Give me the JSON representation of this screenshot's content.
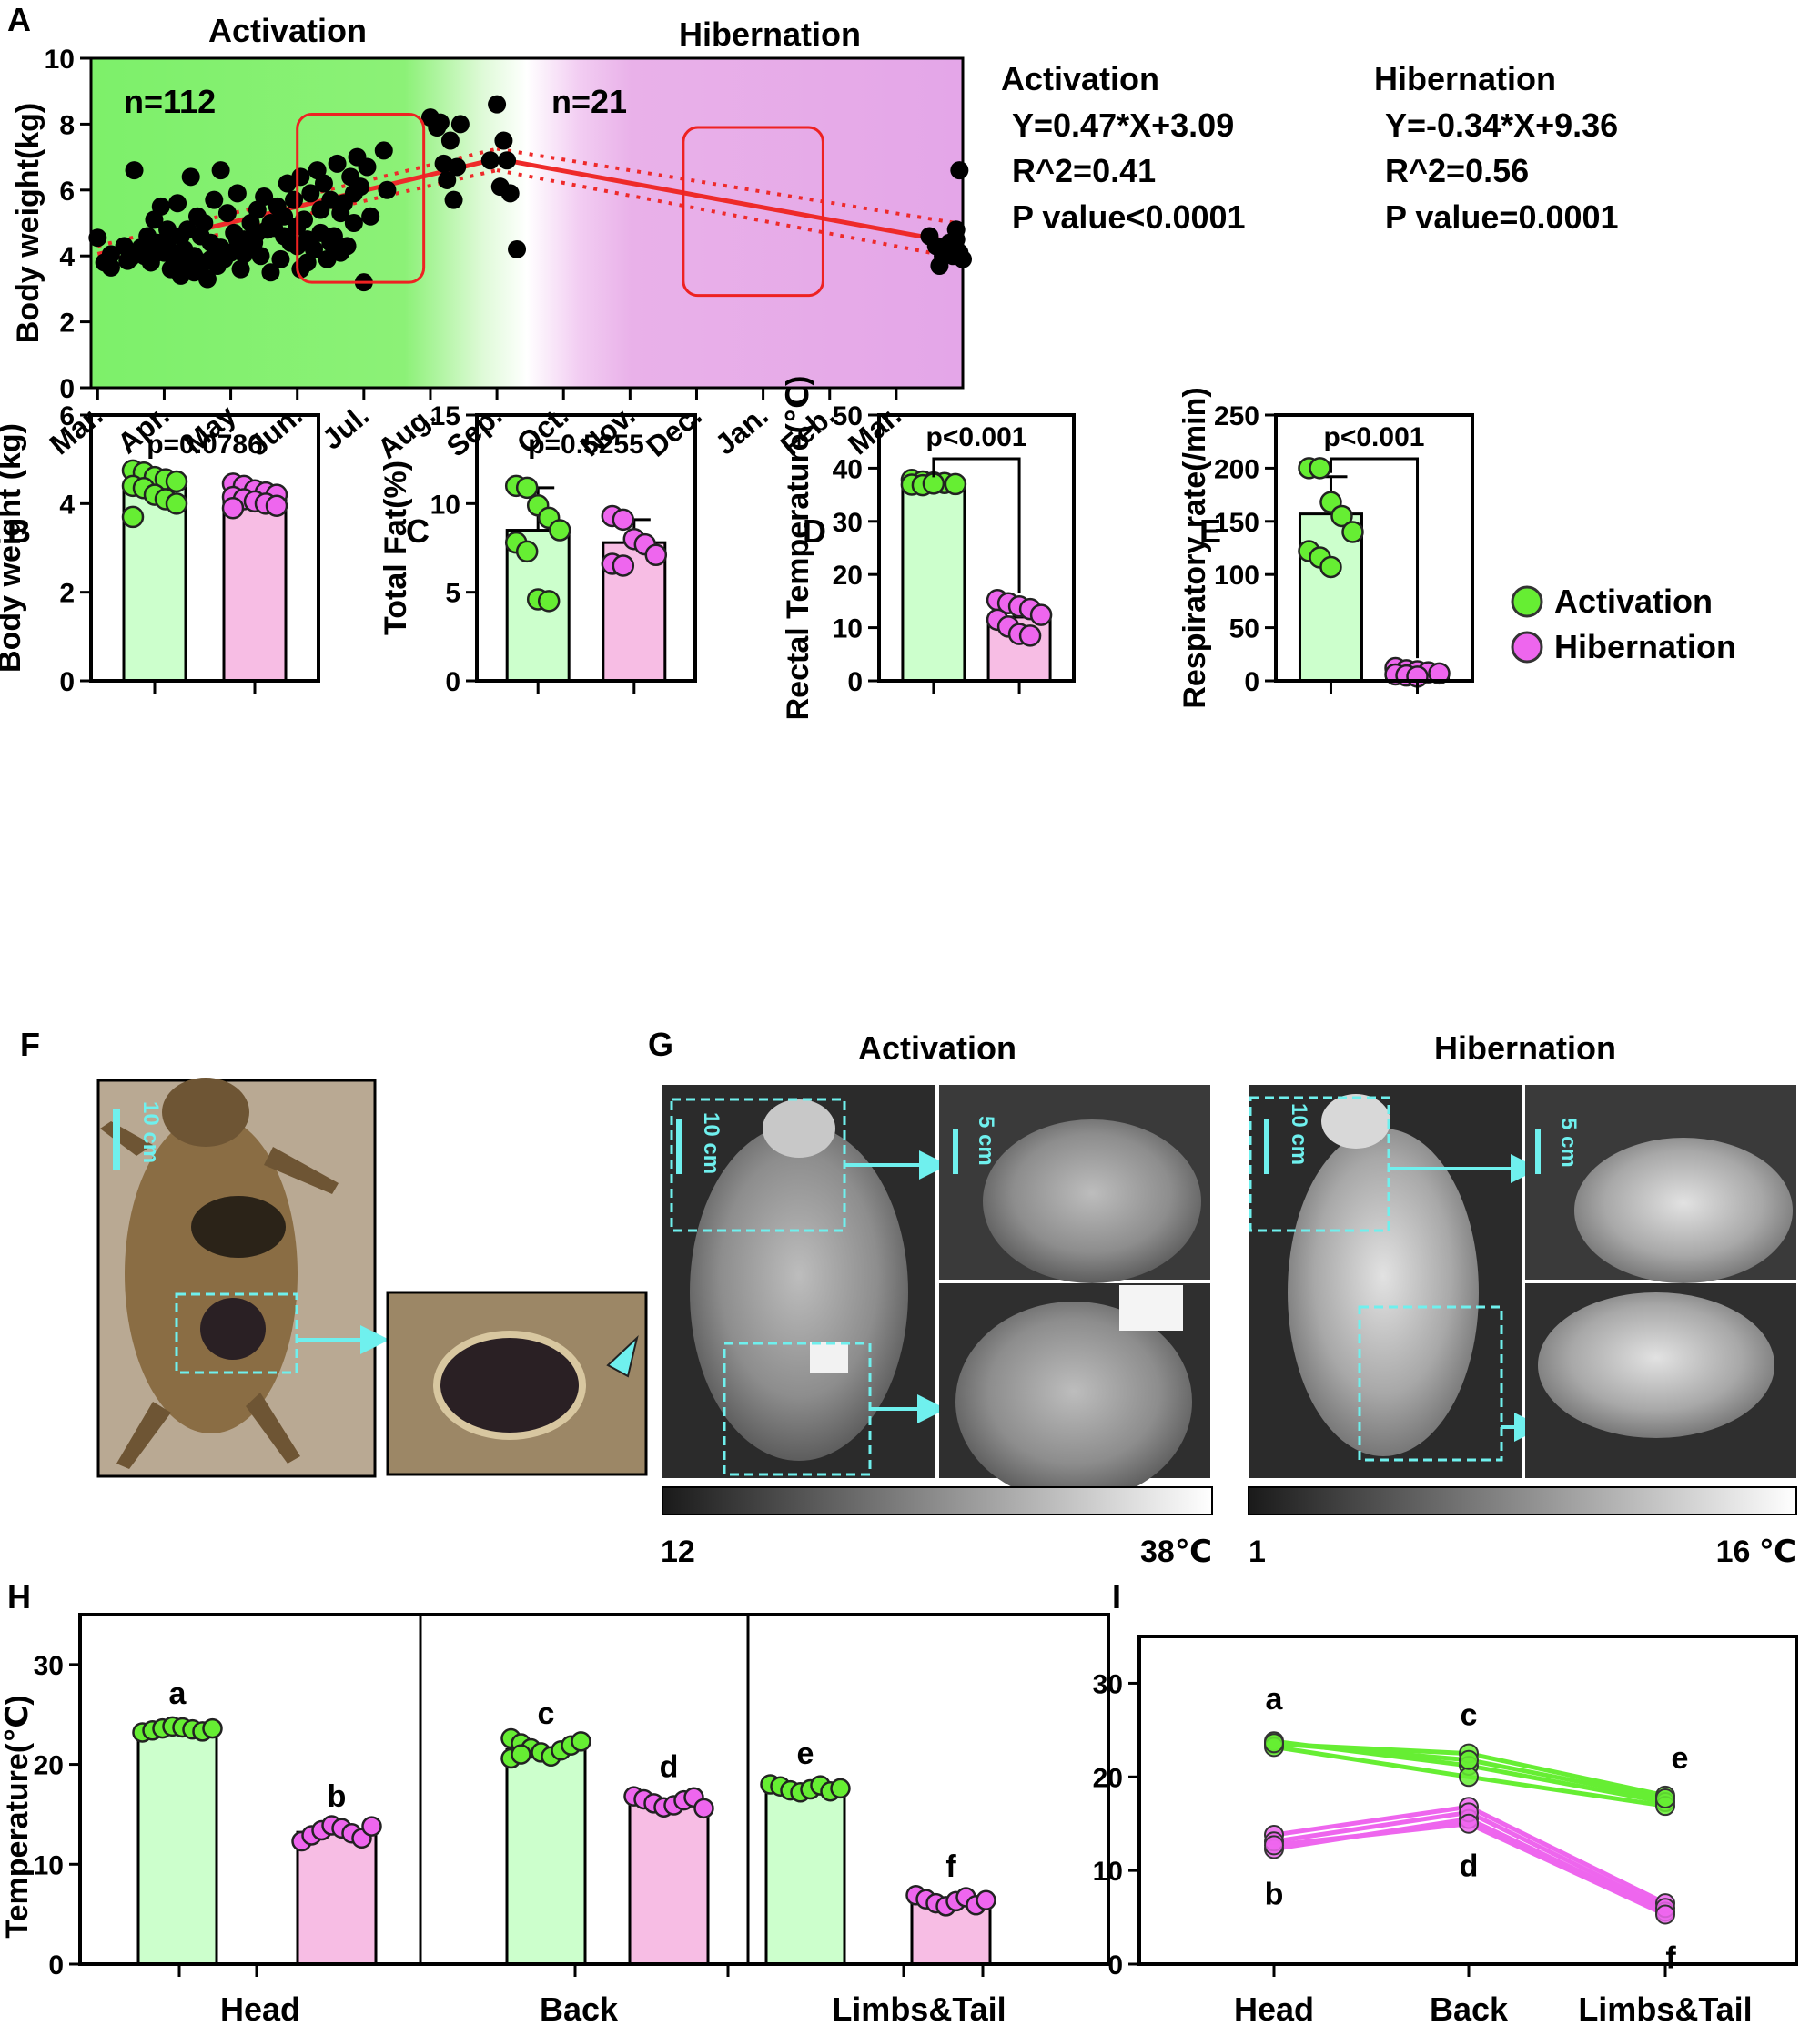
{
  "chart_data": [
    {
      "panel": "A",
      "type": "scatter",
      "title": "",
      "xlabel": "",
      "ylabel": "Body weight(kg)",
      "ylim": [
        0,
        10
      ],
      "yticks": [
        0,
        2,
        4,
        6,
        8,
        10
      ],
      "x_tick_labels": [
        "Mar.",
        "Apr.",
        "May",
        "Jun.",
        "Jul.",
        "Aug.",
        "Sep.",
        "Oct.",
        "Nov.",
        "Dec.",
        "Jan.",
        "Feb.",
        "Mar."
      ],
      "x_range_months": [
        -0.1,
        13.0
      ],
      "region_labels": [
        "Activation",
        "Hibernation"
      ],
      "annotations": [
        "n=112",
        "n=21"
      ],
      "stats": {
        "activation": {
          "title": "Activation",
          "equation": "Y=0.47*X+3.09",
          "r2": "R^2=0.41",
          "p": "P value<0.0001"
        },
        "hibernation": {
          "title": "Hibernation",
          "equation": "Y=-0.34*X+9.36",
          "r2": "R^2=0.56",
          "p": "P value=0.0001"
        }
      },
      "highlight_boxes": [
        {
          "x": [
            3.0,
            4.9
          ],
          "y": [
            3.2,
            8.3
          ]
        },
        {
          "x": [
            8.8,
            10.9
          ],
          "y": [
            2.8,
            7.9
          ]
        }
      ],
      "fit_lines": [
        {
          "x": [
            0.0,
            6.0
          ],
          "y": [
            4.05,
            6.95
          ]
        },
        {
          "x": [
            6.0,
            12.9
          ],
          "y": [
            6.95,
            4.4
          ]
        }
      ],
      "fit_ci_upper": [
        {
          "x": [
            0.0,
            6.0
          ],
          "y": [
            4.3,
            7.25
          ]
        },
        {
          "x": [
            6.0,
            12.9
          ],
          "y": [
            7.25,
            5.0
          ]
        }
      ],
      "fit_ci_lower": [
        {
          "x": [
            0.0,
            6.0
          ],
          "y": [
            3.8,
            6.6
          ]
        },
        {
          "x": [
            6.0,
            12.9
          ],
          "y": [
            6.6,
            3.95
          ]
        }
      ],
      "points": [
        [
          0.0,
          4.55
        ],
        [
          0.1,
          3.8
        ],
        [
          0.2,
          3.65
        ],
        [
          0.4,
          4.3
        ],
        [
          0.5,
          3.95
        ],
        [
          0.55,
          6.6
        ],
        [
          0.7,
          4.0
        ],
        [
          0.75,
          4.6
        ],
        [
          0.8,
          3.8
        ],
        [
          0.85,
          5.1
        ],
        [
          0.9,
          4.4
        ],
        [
          0.95,
          5.5
        ],
        [
          1.0,
          4.1
        ],
        [
          1.05,
          4.8
        ],
        [
          1.1,
          3.6
        ],
        [
          1.15,
          3.9
        ],
        [
          1.2,
          5.6
        ],
        [
          1.25,
          3.4
        ],
        [
          1.3,
          4.2
        ],
        [
          1.35,
          4.8
        ],
        [
          1.4,
          6.4
        ],
        [
          1.45,
          3.5
        ],
        [
          1.5,
          5.2
        ],
        [
          1.55,
          4.6
        ],
        [
          1.6,
          3.8
        ],
        [
          1.65,
          3.3
        ],
        [
          1.7,
          4.4
        ],
        [
          1.75,
          5.7
        ],
        [
          1.8,
          3.7
        ],
        [
          1.85,
          6.6
        ],
        [
          1.9,
          3.9
        ],
        [
          1.95,
          5.3
        ],
        [
          2.0,
          4.1
        ],
        [
          2.05,
          4.7
        ],
        [
          2.1,
          5.9
        ],
        [
          2.15,
          3.6
        ],
        [
          2.2,
          4.5
        ],
        [
          2.25,
          4.2
        ],
        [
          2.3,
          5.0
        ],
        [
          2.35,
          4.4
        ],
        [
          2.4,
          5.4
        ],
        [
          2.45,
          4.0
        ],
        [
          2.5,
          5.8
        ],
        [
          2.55,
          4.8
        ],
        [
          2.6,
          3.5
        ],
        [
          2.7,
          5.5
        ],
        [
          2.75,
          3.9
        ],
        [
          2.8,
          5.2
        ],
        [
          2.85,
          6.2
        ],
        [
          2.9,
          4.4
        ],
        [
          2.95,
          5.7
        ],
        [
          3.0,
          4.9
        ],
        [
          3.05,
          6.4
        ],
        [
          3.1,
          5.1
        ],
        [
          3.15,
          4.5
        ],
        [
          3.2,
          5.9
        ],
        [
          3.25,
          4.2
        ],
        [
          3.3,
          6.6
        ],
        [
          3.35,
          5.4
        ],
        [
          3.4,
          6.2
        ],
        [
          3.45,
          3.9
        ],
        [
          3.5,
          5.7
        ],
        [
          3.55,
          4.6
        ],
        [
          3.6,
          6.8
        ],
        [
          3.65,
          5.3
        ],
        [
          3.7,
          5.6
        ],
        [
          3.75,
          4.3
        ],
        [
          3.8,
          6.4
        ],
        [
          3.85,
          5.9
        ],
        [
          3.9,
          7.0
        ],
        [
          3.95,
          6.1
        ],
        [
          4.0,
          3.2
        ],
        [
          4.05,
          6.7
        ],
        [
          4.1,
          5.2
        ],
        [
          4.3,
          7.2
        ],
        [
          4.35,
          6.0
        ],
        [
          0.2,
          4.05
        ],
        [
          0.65,
          4.25
        ],
        [
          1.3,
          3.75
        ],
        [
          1.6,
          5.0
        ],
        [
          2.2,
          4.05
        ],
        [
          2.6,
          5.0
        ],
        [
          3.0,
          4.3
        ],
        [
          0.45,
          3.85
        ],
        [
          0.85,
          4.05
        ],
        [
          1.05,
          4.3
        ],
        [
          1.25,
          4.6
        ],
        [
          1.45,
          4.0
        ],
        [
          1.7,
          3.9
        ],
        [
          1.85,
          4.25
        ],
        [
          2.1,
          4.5
        ],
        [
          2.4,
          4.7
        ],
        [
          2.65,
          4.85
        ],
        [
          2.8,
          4.6
        ],
        [
          3.05,
          3.6
        ],
        [
          3.15,
          3.8
        ],
        [
          3.35,
          4.7
        ],
        [
          3.5,
          4.4
        ],
        [
          3.65,
          4.1
        ],
        [
          3.85,
          5.0
        ],
        [
          5.0,
          8.2
        ],
        [
          5.1,
          7.9
        ],
        [
          5.15,
          8.05
        ],
        [
          5.2,
          6.8
        ],
        [
          5.25,
          6.3
        ],
        [
          5.3,
          7.5
        ],
        [
          5.35,
          5.7
        ],
        [
          5.4,
          6.7
        ],
        [
          5.45,
          8.0
        ],
        [
          5.9,
          6.9
        ],
        [
          6.0,
          8.6
        ],
        [
          6.05,
          6.1
        ],
        [
          6.1,
          7.5
        ],
        [
          6.15,
          6.9
        ],
        [
          6.2,
          5.9
        ],
        [
          6.3,
          4.2
        ],
        [
          12.5,
          4.6
        ],
        [
          12.65,
          3.7
        ],
        [
          12.8,
          4.4
        ],
        [
          12.9,
          4.8
        ],
        [
          12.95,
          6.6
        ],
        [
          13.0,
          3.9
        ],
        [
          12.95,
          4.1
        ],
        [
          12.9,
          4.5
        ],
        [
          12.7,
          4.0
        ],
        [
          12.6,
          4.3
        ],
        [
          12.85,
          4.0
        ]
      ]
    },
    {
      "panel": "B",
      "type": "bar",
      "ylabel": "Body weight (kg)",
      "ylim": [
        0,
        6
      ],
      "yticks": [
        0,
        2,
        4,
        6
      ],
      "pvalue": "p=0.0786",
      "groups": [
        {
          "name": "Activation",
          "mean": 4.35,
          "sd": 0.3,
          "points": [
            4.75,
            4.7,
            4.6,
            4.55,
            4.5,
            4.4,
            4.35,
            4.2,
            4.1,
            4.0,
            3.7
          ]
        },
        {
          "name": "Hibernation",
          "mean": 4.15,
          "sd": 0.18,
          "points": [
            4.45,
            4.4,
            4.3,
            4.25,
            4.2,
            4.15,
            4.1,
            4.05,
            4.0,
            3.95,
            3.9
          ]
        }
      ]
    },
    {
      "panel": "C",
      "type": "bar",
      "ylabel": "Total Fat(%)",
      "ylim": [
        0,
        15
      ],
      "yticks": [
        0,
        5,
        10,
        15
      ],
      "pvalue": "p=0.5255",
      "groups": [
        {
          "name": "Activation",
          "mean": 8.5,
          "sd": 2.4,
          "points": [
            11.0,
            10.9,
            9.9,
            9.2,
            8.5,
            7.8,
            7.3,
            4.6,
            4.5
          ]
        },
        {
          "name": "Hibernation",
          "mean": 7.8,
          "sd": 1.3,
          "points": [
            9.3,
            9.1,
            8.0,
            7.7,
            7.1,
            6.6,
            6.5
          ]
        }
      ]
    },
    {
      "panel": "D",
      "type": "bar",
      "ylabel": "Rectal Temperature(℃)",
      "ylim": [
        0,
        50
      ],
      "yticks": [
        0,
        10,
        20,
        30,
        40,
        50
      ],
      "pvalue": "p<0.001",
      "groups": [
        {
          "name": "Activation",
          "mean": 37.2,
          "sd": 0.4,
          "points": [
            37.8,
            37.5,
            37.3,
            37.2,
            37.0,
            36.9,
            36.8,
            37.1
          ]
        },
        {
          "name": "Hibernation",
          "mean": 12.0,
          "sd": 2.5,
          "points": [
            15.2,
            14.6,
            14.0,
            13.5,
            12.4,
            11.5,
            10.2,
            8.8,
            8.5
          ]
        }
      ]
    },
    {
      "panel": "E",
      "type": "bar",
      "ylabel": "Respiratory rate(/min)",
      "ylim": [
        0,
        250
      ],
      "yticks": [
        0,
        50,
        100,
        150,
        200,
        250
      ],
      "pvalue": "p<0.001",
      "groups": [
        {
          "name": "Activation",
          "mean": 157,
          "sd": 35,
          "points": [
            200,
            200,
            168,
            155,
            140,
            122,
            116,
            107
          ]
        },
        {
          "name": "Hibernation",
          "mean": 8,
          "sd": 3,
          "points": [
            12,
            10,
            9,
            8,
            7,
            6,
            5,
            4
          ]
        }
      ]
    },
    {
      "panel": "H",
      "type": "bar",
      "ylabel": "Temperature(℃)",
      "ylim": [
        0,
        35
      ],
      "yticks": [
        0,
        10,
        20,
        30
      ],
      "categories": [
        "Head",
        "Back",
        "Limbs&Tail"
      ],
      "groups": [
        {
          "name": "Activation",
          "region": "Head",
          "mean": 23.5,
          "letter": "a",
          "points": [
            23.2,
            23.4,
            23.6,
            23.8,
            23.7,
            23.5,
            23.3,
            23.6
          ]
        },
        {
          "name": "Hibernation",
          "region": "Head",
          "mean": 13.2,
          "letter": "b",
          "points": [
            12.3,
            12.9,
            13.4,
            13.9,
            13.6,
            13.1,
            12.6,
            13.8
          ]
        },
        {
          "name": "Activation",
          "region": "Back",
          "mean": 21.5,
          "letter": "c",
          "points": [
            22.6,
            22.1,
            21.6,
            21.2,
            20.8,
            21.4,
            21.9,
            22.3,
            20.6,
            21.0
          ]
        },
        {
          "name": "Hibernation",
          "region": "Back",
          "mean": 16.2,
          "letter": "d",
          "points": [
            16.8,
            16.5,
            16.1,
            15.7,
            15.9,
            16.4,
            16.7,
            15.6
          ]
        },
        {
          "name": "Activation",
          "region": "Limbs&Tail",
          "mean": 17.5,
          "letter": "e",
          "points": [
            18.0,
            17.8,
            17.4,
            17.2,
            17.5,
            17.9,
            17.3,
            17.6
          ]
        },
        {
          "name": "Hibernation",
          "region": "Limbs&Tail",
          "mean": 6.2,
          "letter": "f",
          "points": [
            6.9,
            6.5,
            6.1,
            5.8,
            6.3,
            6.7,
            5.9,
            6.4
          ]
        }
      ]
    },
    {
      "panel": "I",
      "type": "line",
      "ylim": [
        0,
        35
      ],
      "yticks": [
        0,
        10,
        20,
        30
      ],
      "categories": [
        "Head",
        "Back",
        "Limbs&Tail"
      ],
      "letters": {
        "activation": [
          "a",
          "c",
          "e"
        ],
        "hibernation": [
          "b",
          "d",
          "f"
        ]
      },
      "series": [
        {
          "name": "Activation",
          "lines": [
            [
              23.5,
              22.5,
              18.0
            ],
            [
              23.8,
              21.2,
              17.3
            ],
            [
              23.2,
              20.0,
              16.9
            ],
            [
              23.6,
              21.8,
              17.7
            ]
          ]
        },
        {
          "name": "Hibernation",
          "lines": [
            [
              13.8,
              16.8,
              6.5
            ],
            [
              12.3,
              15.5,
              5.6
            ],
            [
              13.1,
              16.2,
              6.0
            ],
            [
              12.7,
              15.0,
              5.3
            ]
          ]
        }
      ]
    }
  ],
  "legend": {
    "items": [
      "Activation",
      "Hibernation"
    ],
    "colors": [
      "#66ee33",
      "#ee66ee"
    ]
  },
  "panel_labels": [
    "A",
    "B",
    "C",
    "D",
    "E",
    "F",
    "G",
    "H",
    "I"
  ],
  "panel_g": {
    "titles": [
      "Activation",
      "Hibernation"
    ],
    "scales": [
      {
        "min": "12",
        "max": "38℃"
      },
      {
        "min": "1",
        "max": "16 ℃"
      }
    ],
    "scale_bars": [
      "10 cm",
      "5 cm",
      "10 cm",
      "5 cm"
    ]
  },
  "panel_f": {
    "scale_bar": "10 cm"
  },
  "colors": {
    "activation_fill": "#ccffcc",
    "hibernation_fill": "#f7bde4",
    "activation_point": "#66ee33",
    "hibernation_point": "#ee66ee",
    "fit_line": "#ee2a2a",
    "annotation_cyan": "#6ff0ee"
  }
}
